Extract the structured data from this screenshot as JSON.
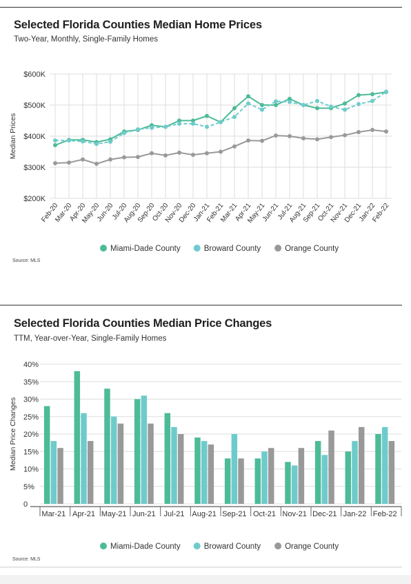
{
  "colors": {
    "miami": "#4dbb98",
    "broward": "#6fcbcb",
    "orange": "#999999",
    "grid": "#dedede"
  },
  "chart_data": [
    {
      "type": "line",
      "title": "Selected Florida Counties Median Home Prices",
      "subtitle": "Two-Year, Monthly, Single-Family Homes",
      "ylabel": "Median Prices",
      "ylim": [
        200000,
        600000
      ],
      "yticks": [
        200000,
        300000,
        400000,
        500000,
        600000
      ],
      "ytick_labels": [
        "$200K",
        "$300K",
        "$400K",
        "$500K",
        "$600K"
      ],
      "categories": [
        "Feb-20",
        "Mar-20",
        "Apr-20",
        "May-20",
        "Jun-20",
        "Jul-20",
        "Aug-20",
        "Sep-20",
        "Oct-20",
        "Nov-20",
        "Dec-20",
        "Jan-21",
        "Feb-21",
        "Mar-21",
        "Apr-21",
        "May-21",
        "Jun-21",
        "Jul-21",
        "Aug-21",
        "Sep-21",
        "Oct-21",
        "Nov-21",
        "Dec-21",
        "Jan-22",
        "Feb-22"
      ],
      "series": [
        {
          "name": "Miami-Dade County",
          "color": "#4dbb98",
          "values": [
            371000,
            388000,
            388000,
            381000,
            390000,
            415000,
            420000,
            435000,
            430000,
            450000,
            450000,
            465000,
            445000,
            490000,
            528000,
            500000,
            500000,
            520000,
            500000,
            490000,
            490000,
            505000,
            532000,
            535000,
            542000
          ]
        },
        {
          "name": "Broward County",
          "color": "#6fcbcb",
          "values": [
            386000,
            386000,
            383000,
            375000,
            382000,
            410000,
            422000,
            427000,
            430000,
            440000,
            440000,
            430000,
            445000,
            462000,
            505000,
            485000,
            512000,
            510000,
            500000,
            513000,
            495000,
            485000,
            503000,
            513000,
            543000
          ]
        },
        {
          "name": "Orange County",
          "color": "#999999",
          "values": [
            313000,
            315000,
            325000,
            311000,
            325000,
            332000,
            333000,
            345000,
            338000,
            347000,
            340000,
            345000,
            350000,
            367000,
            386000,
            385000,
            402000,
            400000,
            393000,
            390000,
            397000,
            403000,
            413000,
            420000,
            415000
          ]
        }
      ],
      "legend": "bottom",
      "source": "Source: MLS"
    },
    {
      "type": "bar",
      "title": "Selected Florida Counties Median Price Changes",
      "subtitle": "TTM, Year-over-Year, Single-Family Homes",
      "ylabel": "Median Price Changes",
      "ylim": [
        0,
        40
      ],
      "yticks": [
        0,
        5,
        10,
        15,
        20,
        25,
        30,
        35,
        40
      ],
      "ytick_labels": [
        "0",
        "5%",
        "10%",
        "15%",
        "20%",
        "25%",
        "30%",
        "35%",
        "40%"
      ],
      "categories": [
        "Mar-21",
        "Apr-21",
        "May-21",
        "Jun-21",
        "Jul-21",
        "Aug-21",
        "Sep-21",
        "Oct-21",
        "Nov-21",
        "Dec-21",
        "Jan-22",
        "Feb-22"
      ],
      "series": [
        {
          "name": "Miami-Dade County",
          "color": "#4dbb98",
          "values": [
            28,
            38,
            33,
            30,
            26,
            19,
            13,
            13,
            12,
            18,
            15,
            20
          ]
        },
        {
          "name": "Broward County",
          "color": "#6fcbcb",
          "values": [
            18,
            26,
            25,
            31,
            22,
            18,
            20,
            15,
            11,
            14,
            18,
            22
          ]
        },
        {
          "name": "Orange County",
          "color": "#999999",
          "values": [
            16,
            18,
            23,
            23,
            20,
            17,
            13,
            16,
            16,
            21,
            22,
            18
          ]
        }
      ],
      "legend": "bottom",
      "source": "Source: MLS"
    }
  ]
}
